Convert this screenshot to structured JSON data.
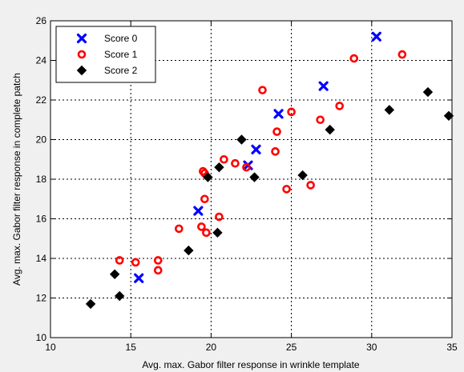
{
  "chart_data": {
    "type": "scatter",
    "xlabel": "Avg. max. Gabor filter response in wrinkle template",
    "ylabel": "Avg. max. Gabor filter response in complete patch",
    "xlim": [
      10,
      35
    ],
    "ylim": [
      10,
      26
    ],
    "xticks": [
      10,
      15,
      20,
      25,
      30,
      35
    ],
    "yticks": [
      10,
      12,
      14,
      16,
      18,
      20,
      22,
      24,
      26
    ],
    "grid": true,
    "legend_position": "top-left",
    "series": [
      {
        "name": "Score 0",
        "marker": "x",
        "color": "#0000ff",
        "points": [
          [
            15.5,
            13.0
          ],
          [
            19.2,
            16.4
          ],
          [
            22.3,
            18.7
          ],
          [
            22.8,
            19.5
          ],
          [
            24.2,
            21.3
          ],
          [
            27.0,
            22.7
          ],
          [
            30.3,
            25.2
          ]
        ]
      },
      {
        "name": "Score 1",
        "marker": "circle",
        "color": "#ff0000",
        "points": [
          [
            14.3,
            13.9
          ],
          [
            15.3,
            13.8
          ],
          [
            16.7,
            13.9
          ],
          [
            16.7,
            13.4
          ],
          [
            18.0,
            15.5
          ],
          [
            19.4,
            15.6
          ],
          [
            19.7,
            15.3
          ],
          [
            20.5,
            16.1
          ],
          [
            19.6,
            17.0
          ],
          [
            19.5,
            18.4
          ],
          [
            19.6,
            18.3
          ],
          [
            20.8,
            19.0
          ],
          [
            21.5,
            18.8
          ],
          [
            22.2,
            18.6
          ],
          [
            23.2,
            22.5
          ],
          [
            24.0,
            19.4
          ],
          [
            24.1,
            20.4
          ],
          [
            24.7,
            17.5
          ],
          [
            25.0,
            21.4
          ],
          [
            26.2,
            17.7
          ],
          [
            26.8,
            21.0
          ],
          [
            28.0,
            21.7
          ],
          [
            28.9,
            24.1
          ],
          [
            31.9,
            24.3
          ]
        ]
      },
      {
        "name": "Score 2",
        "marker": "diamond",
        "color": "#000000",
        "points": [
          [
            12.5,
            11.7
          ],
          [
            14.0,
            13.2
          ],
          [
            14.3,
            12.1
          ],
          [
            18.6,
            14.4
          ],
          [
            19.8,
            18.1
          ],
          [
            20.4,
            15.3
          ],
          [
            20.5,
            18.6
          ],
          [
            21.9,
            20.0
          ],
          [
            22.7,
            18.1
          ],
          [
            25.7,
            18.2
          ],
          [
            27.4,
            20.5
          ],
          [
            31.1,
            21.5
          ],
          [
            33.5,
            22.4
          ],
          [
            34.8,
            21.2
          ]
        ]
      }
    ]
  }
}
